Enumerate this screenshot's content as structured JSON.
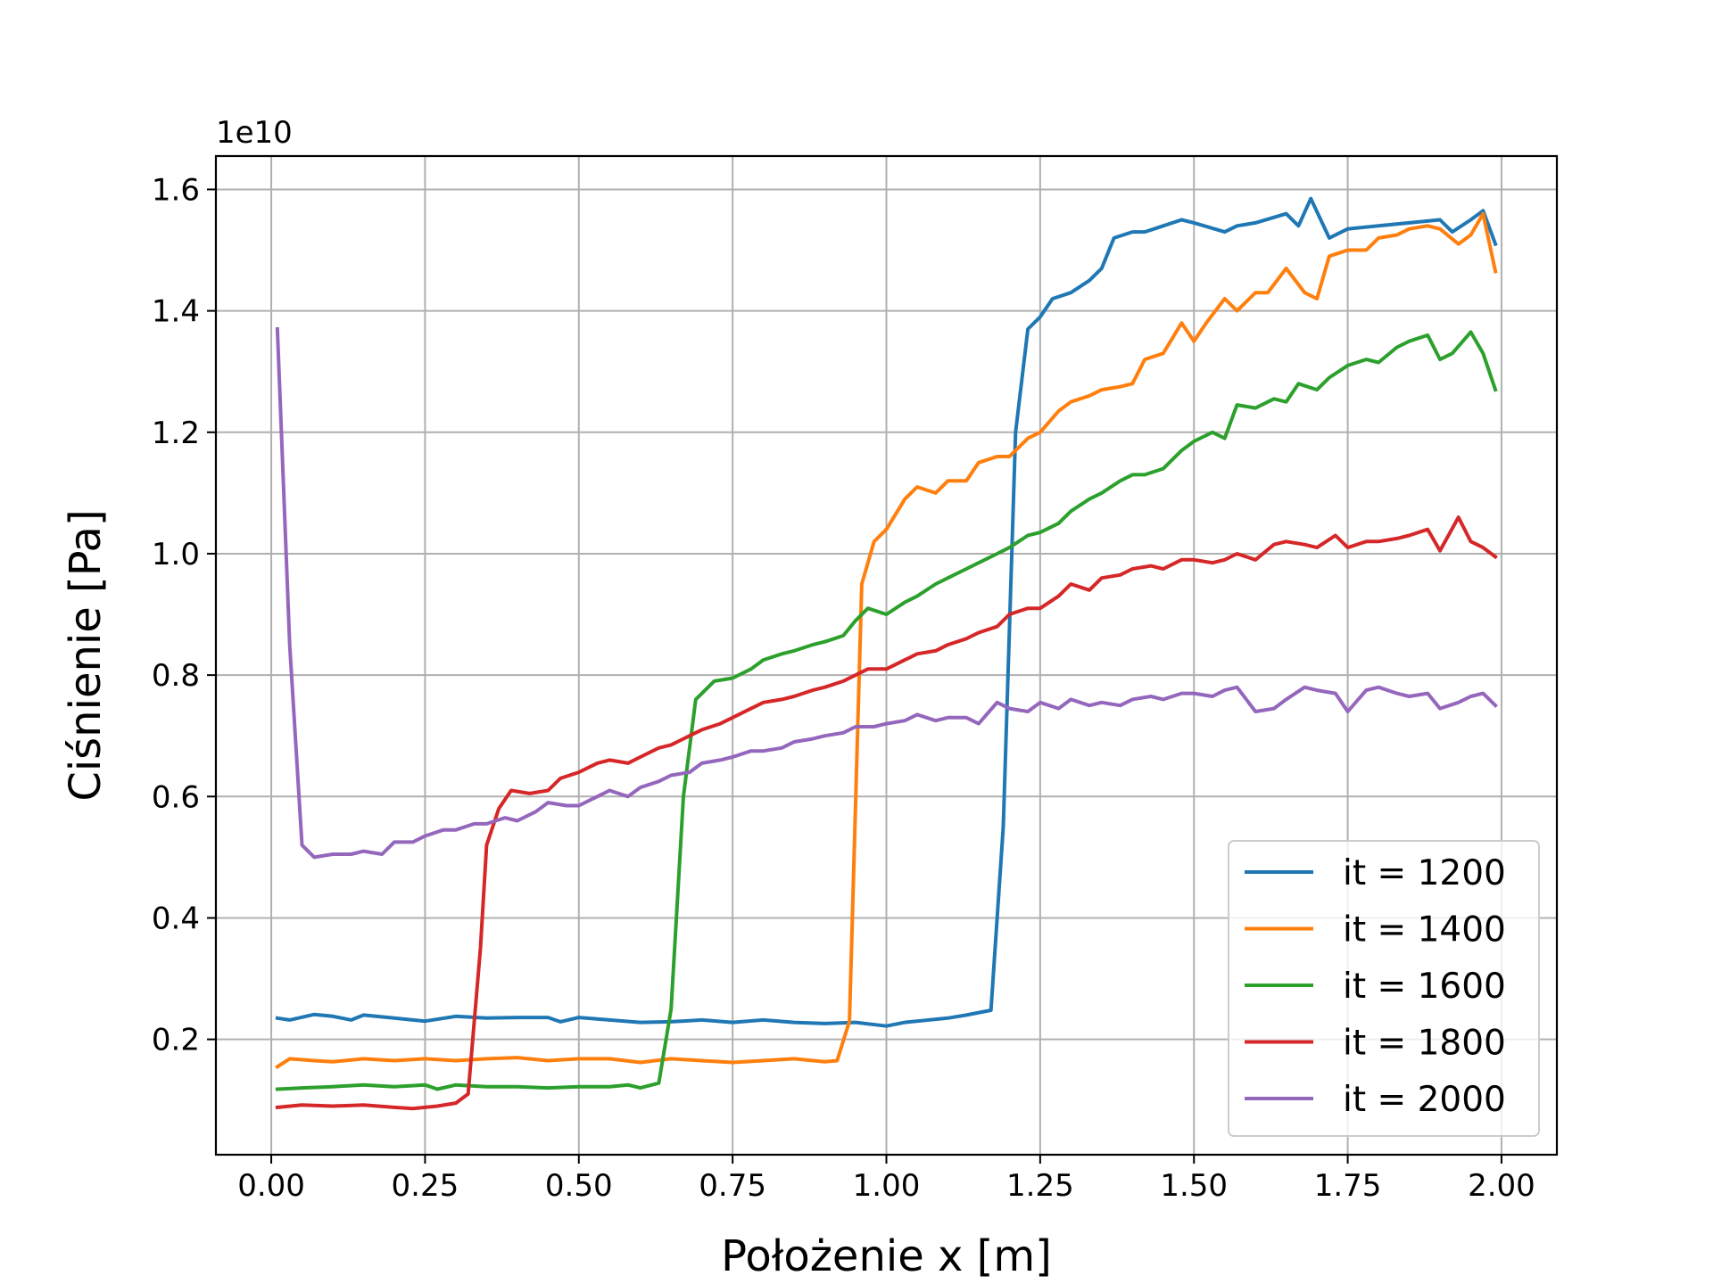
{
  "chart_data": {
    "type": "line",
    "title": "",
    "xlabel": "Położenie x [m]",
    "ylabel": "Ciśnienie [Pa]",
    "y_offset_label": "1e10",
    "y_scale": 10000000000,
    "xlim": [
      -0.09,
      2.09
    ],
    "ylim": [
      0.01,
      1.655
    ],
    "xticks": [
      0.0,
      0.25,
      0.5,
      0.75,
      1.0,
      1.25,
      1.5,
      1.75,
      2.0
    ],
    "xtick_labels": [
      "0.00",
      "0.25",
      "0.50",
      "0.75",
      "1.00",
      "1.25",
      "1.50",
      "1.75",
      "2.00"
    ],
    "yticks": [
      0.2,
      0.4,
      0.6,
      0.8,
      1.0,
      1.2,
      1.4,
      1.6
    ],
    "ytick_labels": [
      "0.2",
      "0.4",
      "0.6",
      "0.8",
      "1.0",
      "1.2",
      "1.4",
      "1.6"
    ],
    "grid": true,
    "legend_position": "lower-right",
    "series": [
      {
        "name": "it = 1200",
        "color": "#1f77b4",
        "x": [
          0.01,
          0.03,
          0.07,
          0.1,
          0.13,
          0.15,
          0.2,
          0.25,
          0.3,
          0.35,
          0.4,
          0.45,
          0.47,
          0.5,
          0.55,
          0.6,
          0.65,
          0.7,
          0.75,
          0.8,
          0.85,
          0.9,
          0.95,
          1.0,
          1.03,
          1.1,
          1.13,
          1.17,
          1.19,
          1.21,
          1.23,
          1.25,
          1.27,
          1.3,
          1.33,
          1.35,
          1.37,
          1.4,
          1.42,
          1.45,
          1.48,
          1.5,
          1.55,
          1.57,
          1.6,
          1.65,
          1.67,
          1.69,
          1.72,
          1.75,
          1.8,
          1.85,
          1.9,
          1.92,
          1.95,
          1.97,
          1.99
        ],
        "y": [
          0.235,
          0.232,
          0.241,
          0.238,
          0.232,
          0.24,
          0.235,
          0.23,
          0.238,
          0.235,
          0.236,
          0.236,
          0.229,
          0.236,
          0.232,
          0.228,
          0.229,
          0.232,
          0.228,
          0.232,
          0.228,
          0.226,
          0.228,
          0.222,
          0.228,
          0.235,
          0.24,
          0.248,
          0.55,
          1.2,
          1.37,
          1.39,
          1.42,
          1.43,
          1.45,
          1.47,
          1.52,
          1.53,
          1.53,
          1.54,
          1.55,
          1.545,
          1.53,
          1.54,
          1.545,
          1.56,
          1.54,
          1.585,
          1.52,
          1.535,
          1.54,
          1.545,
          1.55,
          1.53,
          1.55,
          1.565,
          1.51
        ]
      },
      {
        "name": "it = 1400",
        "color": "#ff7f0e",
        "x": [
          0.01,
          0.03,
          0.07,
          0.1,
          0.15,
          0.2,
          0.25,
          0.3,
          0.35,
          0.4,
          0.45,
          0.5,
          0.55,
          0.6,
          0.65,
          0.7,
          0.75,
          0.8,
          0.85,
          0.9,
          0.92,
          0.94,
          0.96,
          0.98,
          1.0,
          1.03,
          1.05,
          1.08,
          1.1,
          1.13,
          1.15,
          1.18,
          1.2,
          1.23,
          1.25,
          1.28,
          1.3,
          1.33,
          1.35,
          1.38,
          1.4,
          1.42,
          1.45,
          1.48,
          1.5,
          1.52,
          1.55,
          1.57,
          1.6,
          1.62,
          1.65,
          1.68,
          1.7,
          1.72,
          1.75,
          1.78,
          1.8,
          1.83,
          1.85,
          1.88,
          1.9,
          1.93,
          1.95,
          1.97,
          1.99
        ],
        "y": [
          0.155,
          0.168,
          0.165,
          0.163,
          0.168,
          0.165,
          0.168,
          0.165,
          0.168,
          0.17,
          0.165,
          0.168,
          0.168,
          0.162,
          0.168,
          0.165,
          0.162,
          0.165,
          0.168,
          0.163,
          0.165,
          0.23,
          0.95,
          1.02,
          1.04,
          1.09,
          1.11,
          1.1,
          1.12,
          1.12,
          1.15,
          1.16,
          1.16,
          1.19,
          1.2,
          1.235,
          1.25,
          1.26,
          1.27,
          1.275,
          1.28,
          1.32,
          1.33,
          1.38,
          1.35,
          1.38,
          1.42,
          1.4,
          1.43,
          1.43,
          1.47,
          1.43,
          1.42,
          1.49,
          1.5,
          1.5,
          1.52,
          1.525,
          1.535,
          1.54,
          1.535,
          1.51,
          1.525,
          1.56,
          1.465
        ]
      },
      {
        "name": "it = 1600",
        "color": "#2ca02c",
        "x": [
          0.01,
          0.05,
          0.1,
          0.15,
          0.2,
          0.25,
          0.27,
          0.3,
          0.35,
          0.4,
          0.45,
          0.5,
          0.55,
          0.58,
          0.6,
          0.63,
          0.65,
          0.67,
          0.69,
          0.72,
          0.75,
          0.78,
          0.8,
          0.83,
          0.85,
          0.88,
          0.9,
          0.93,
          0.95,
          0.97,
          1.0,
          1.03,
          1.05,
          1.08,
          1.1,
          1.13,
          1.15,
          1.18,
          1.2,
          1.23,
          1.25,
          1.28,
          1.3,
          1.33,
          1.35,
          1.38,
          1.4,
          1.42,
          1.45,
          1.48,
          1.5,
          1.53,
          1.55,
          1.57,
          1.6,
          1.63,
          1.65,
          1.67,
          1.7,
          1.72,
          1.75,
          1.78,
          1.8,
          1.83,
          1.85,
          1.88,
          1.9,
          1.92,
          1.95,
          1.97,
          1.99
        ],
        "y": [
          0.118,
          0.12,
          0.122,
          0.125,
          0.122,
          0.125,
          0.118,
          0.125,
          0.122,
          0.122,
          0.12,
          0.122,
          0.122,
          0.125,
          0.12,
          0.128,
          0.25,
          0.6,
          0.76,
          0.79,
          0.795,
          0.81,
          0.825,
          0.835,
          0.84,
          0.85,
          0.855,
          0.865,
          0.89,
          0.91,
          0.9,
          0.92,
          0.93,
          0.95,
          0.96,
          0.975,
          0.985,
          1.0,
          1.01,
          1.03,
          1.035,
          1.05,
          1.07,
          1.09,
          1.1,
          1.12,
          1.13,
          1.13,
          1.14,
          1.17,
          1.185,
          1.2,
          1.19,
          1.245,
          1.24,
          1.255,
          1.25,
          1.28,
          1.27,
          1.29,
          1.31,
          1.32,
          1.315,
          1.34,
          1.35,
          1.36,
          1.32,
          1.33,
          1.365,
          1.33,
          1.27
        ]
      },
      {
        "name": "it = 1800",
        "color": "#d62728",
        "x": [
          0.01,
          0.05,
          0.1,
          0.15,
          0.2,
          0.23,
          0.27,
          0.3,
          0.32,
          0.34,
          0.35,
          0.37,
          0.39,
          0.42,
          0.45,
          0.47,
          0.5,
          0.53,
          0.55,
          0.58,
          0.6,
          0.63,
          0.65,
          0.68,
          0.7,
          0.73,
          0.75,
          0.78,
          0.8,
          0.83,
          0.85,
          0.88,
          0.9,
          0.93,
          0.95,
          0.97,
          1.0,
          1.03,
          1.05,
          1.08,
          1.1,
          1.13,
          1.15,
          1.18,
          1.2,
          1.23,
          1.25,
          1.28,
          1.3,
          1.33,
          1.35,
          1.38,
          1.4,
          1.43,
          1.45,
          1.48,
          1.5,
          1.53,
          1.55,
          1.57,
          1.6,
          1.63,
          1.65,
          1.68,
          1.7,
          1.73,
          1.75,
          1.78,
          1.8,
          1.83,
          1.85,
          1.88,
          1.9,
          1.93,
          1.95,
          1.97,
          1.99
        ],
        "y": [
          0.088,
          0.092,
          0.09,
          0.092,
          0.088,
          0.086,
          0.09,
          0.095,
          0.11,
          0.35,
          0.52,
          0.58,
          0.61,
          0.605,
          0.61,
          0.63,
          0.64,
          0.655,
          0.66,
          0.655,
          0.665,
          0.68,
          0.685,
          0.7,
          0.71,
          0.72,
          0.73,
          0.745,
          0.755,
          0.76,
          0.765,
          0.775,
          0.78,
          0.79,
          0.8,
          0.81,
          0.81,
          0.825,
          0.835,
          0.84,
          0.85,
          0.86,
          0.87,
          0.88,
          0.9,
          0.91,
          0.91,
          0.93,
          0.95,
          0.94,
          0.96,
          0.965,
          0.975,
          0.98,
          0.975,
          0.99,
          0.99,
          0.985,
          0.99,
          1.0,
          0.99,
          1.015,
          1.02,
          1.015,
          1.01,
          1.03,
          1.01,
          1.02,
          1.02,
          1.025,
          1.03,
          1.04,
          1.005,
          1.06,
          1.02,
          1.01,
          0.995
        ]
      },
      {
        "name": "it = 2000",
        "color": "#9467bd",
        "x": [
          0.01,
          0.03,
          0.05,
          0.07,
          0.1,
          0.13,
          0.15,
          0.18,
          0.2,
          0.23,
          0.25,
          0.28,
          0.3,
          0.33,
          0.35,
          0.38,
          0.4,
          0.43,
          0.45,
          0.48,
          0.5,
          0.53,
          0.55,
          0.58,
          0.6,
          0.63,
          0.65,
          0.68,
          0.7,
          0.73,
          0.75,
          0.78,
          0.8,
          0.83,
          0.85,
          0.88,
          0.9,
          0.93,
          0.95,
          0.98,
          1.0,
          1.03,
          1.05,
          1.08,
          1.1,
          1.13,
          1.15,
          1.18,
          1.2,
          1.23,
          1.25,
          1.28,
          1.3,
          1.33,
          1.35,
          1.38,
          1.4,
          1.43,
          1.45,
          1.48,
          1.5,
          1.53,
          1.55,
          1.57,
          1.6,
          1.63,
          1.65,
          1.68,
          1.7,
          1.73,
          1.75,
          1.78,
          1.8,
          1.83,
          1.85,
          1.88,
          1.9,
          1.93,
          1.95,
          1.97,
          1.99
        ],
        "y": [
          1.37,
          0.85,
          0.52,
          0.5,
          0.505,
          0.505,
          0.51,
          0.505,
          0.525,
          0.525,
          0.535,
          0.545,
          0.545,
          0.555,
          0.555,
          0.565,
          0.56,
          0.575,
          0.59,
          0.585,
          0.585,
          0.6,
          0.61,
          0.6,
          0.615,
          0.625,
          0.635,
          0.64,
          0.655,
          0.66,
          0.665,
          0.675,
          0.675,
          0.68,
          0.69,
          0.695,
          0.7,
          0.705,
          0.715,
          0.715,
          0.72,
          0.725,
          0.735,
          0.725,
          0.73,
          0.73,
          0.72,
          0.755,
          0.745,
          0.74,
          0.755,
          0.745,
          0.76,
          0.75,
          0.755,
          0.75,
          0.76,
          0.765,
          0.76,
          0.77,
          0.77,
          0.765,
          0.775,
          0.78,
          0.74,
          0.745,
          0.76,
          0.78,
          0.775,
          0.77,
          0.74,
          0.775,
          0.78,
          0.77,
          0.765,
          0.77,
          0.745,
          0.755,
          0.765,
          0.77,
          0.75
        ]
      }
    ]
  }
}
